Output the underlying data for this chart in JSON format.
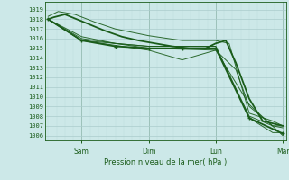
{
  "bg_color": "#cce8e8",
  "grid_major_color": "#aacccc",
  "grid_minor_color": "#bbdddd",
  "line_color": "#1a5c1a",
  "title": "Pression niveau de la mer( hPa )",
  "ylabel_values": [
    1006,
    1007,
    1008,
    1009,
    1010,
    1011,
    1012,
    1013,
    1014,
    1015,
    1016,
    1017,
    1018,
    1019
  ],
  "ylim": [
    1005.5,
    1019.8
  ],
  "xlim": [
    -0.05,
    3.55
  ],
  "xtick_positions": [
    0.5,
    1.5,
    2.5,
    3.5
  ],
  "xtick_labels": [
    "Sam",
    "Dim",
    "Lun",
    "Mar"
  ],
  "thin_lw": 0.7,
  "thick_lw": 1.3,
  "marker_size": 3.0,
  "series_thin": [
    {
      "x": [
        0.0,
        0.5,
        1.5,
        2.5,
        3.0,
        3.35,
        3.5
      ],
      "y": [
        1018.0,
        1015.8,
        1015.2,
        1015.2,
        1007.8,
        1006.3,
        1006.3
      ]
    },
    {
      "x": [
        0.0,
        0.5,
        1.0,
        1.5,
        2.5,
        2.8,
        3.0,
        3.35,
        3.5
      ],
      "y": [
        1018.0,
        1016.2,
        1015.5,
        1015.0,
        1014.8,
        1012.8,
        1009.0,
        1007.0,
        1007.0
      ]
    },
    {
      "x": [
        0.0,
        0.15,
        0.4,
        0.7,
        1.0,
        1.5,
        2.0,
        2.5,
        2.7,
        3.0,
        3.35,
        3.5
      ],
      "y": [
        1018.3,
        1018.8,
        1018.5,
        1017.7,
        1017.0,
        1016.3,
        1015.8,
        1015.8,
        1015.5,
        1008.3,
        1007.5,
        1007.0
      ]
    },
    {
      "x": [
        0.0,
        0.5,
        1.0,
        1.5,
        2.0,
        2.5,
        3.0,
        3.35,
        3.5
      ],
      "y": [
        1018.0,
        1016.0,
        1015.5,
        1015.2,
        1015.2,
        1015.2,
        1008.0,
        1007.0,
        1006.8
      ]
    },
    {
      "x": [
        0.0,
        0.5,
        1.5,
        2.0,
        2.5,
        3.0,
        3.5
      ],
      "y": [
        1018.0,
        1015.8,
        1014.8,
        1013.8,
        1014.8,
        1009.2,
        1006.0
      ]
    }
  ],
  "series_thick_nomarker": [
    {
      "x": [
        0.0,
        0.08,
        0.25,
        0.5,
        0.85,
        1.1,
        1.35,
        1.6,
        1.85,
        2.1,
        2.35,
        2.5,
        2.65,
        2.8,
        3.0,
        3.2,
        3.5
      ],
      "y": [
        1018.0,
        1018.2,
        1018.5,
        1017.8,
        1016.8,
        1016.2,
        1015.8,
        1015.5,
        1015.2,
        1015.0,
        1015.0,
        1015.5,
        1015.8,
        1013.5,
        1009.8,
        1007.5,
        1007.0
      ]
    }
  ],
  "series_thick_marker": [
    {
      "x": [
        0.0,
        0.5,
        1.0,
        1.5,
        2.0,
        2.5,
        3.0,
        3.5
      ],
      "y": [
        1018.0,
        1015.8,
        1015.2,
        1015.0,
        1015.0,
        1015.0,
        1007.8,
        1006.2
      ]
    }
  ]
}
